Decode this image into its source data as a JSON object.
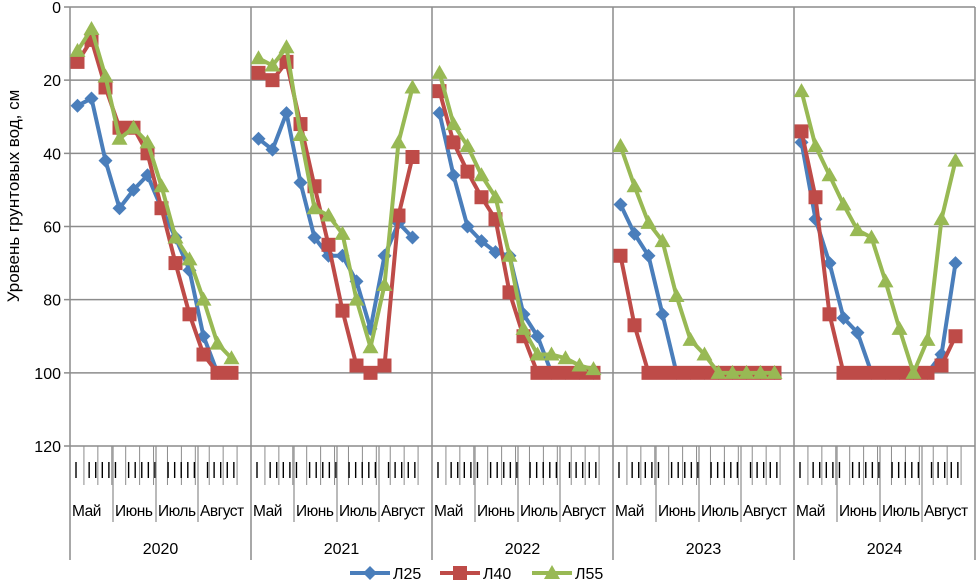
{
  "chart_data": {
    "type": "line",
    "title": "",
    "ylabel": "Уровень грунтовых вод, см",
    "xlabel": "",
    "ylim": [
      0,
      120
    ],
    "y_inverted": true,
    "yticks": [
      "0",
      "20",
      "40",
      "60",
      "80",
      "100",
      "120"
    ],
    "ytick_values": [
      0,
      20,
      40,
      60,
      80,
      100,
      120
    ],
    "grid": true,
    "legend_position": "bottom",
    "years": [
      "2020",
      "2021",
      "2022",
      "2023",
      "2024"
    ],
    "months": [
      "Май",
      "Июнь",
      "Июль",
      "Август"
    ],
    "points_per_year": 12,
    "series": [
      {
        "name": "Л25",
        "color": "#4a7ebb",
        "marker": "diamond",
        "values": {
          "2020": [
            27,
            25,
            42,
            55,
            50,
            46,
            55,
            63,
            72,
            90,
            100,
            100
          ],
          "2021": [
            36,
            39,
            29,
            48,
            63,
            68,
            68,
            75,
            88,
            68,
            59,
            63
          ],
          "2022": [
            29,
            46,
            60,
            64,
            67,
            68,
            84,
            90,
            100,
            100,
            100,
            100
          ],
          "2023": [
            54,
            62,
            68,
            84,
            100,
            100,
            100,
            100,
            100,
            100,
            100,
            100
          ],
          "2024": [
            37,
            58,
            70,
            85,
            89,
            100,
            100,
            100,
            100,
            100,
            95,
            70
          ]
        }
      },
      {
        "name": "Л40",
        "color": "#be4b48",
        "marker": "square",
        "values": {
          "2020": [
            15,
            9,
            22,
            33,
            33,
            40,
            55,
            70,
            84,
            95,
            100,
            100
          ],
          "2021": [
            18,
            20,
            15,
            32,
            49,
            65,
            83,
            98,
            100,
            98,
            57,
            41
          ],
          "2022": [
            23,
            37,
            45,
            52,
            58,
            78,
            90,
            100,
            100,
            100,
            100,
            100
          ],
          "2023": [
            68,
            87,
            100,
            100,
            100,
            100,
            100,
            100,
            100,
            100,
            100,
            100
          ],
          "2024": [
            34,
            52,
            84,
            100,
            100,
            100,
            100,
            100,
            100,
            100,
            98,
            90
          ]
        }
      },
      {
        "name": "Л55",
        "color": "#98b954",
        "marker": "triangle",
        "values": {
          "2020": [
            12,
            6,
            19,
            36,
            33,
            37,
            49,
            63,
            69,
            80,
            92,
            96
          ],
          "2021": [
            14,
            16,
            11,
            35,
            55,
            57,
            62,
            80,
            93,
            76,
            37,
            22
          ],
          "2022": [
            18,
            32,
            38,
            46,
            52,
            68,
            88,
            95,
            95,
            96,
            98,
            99
          ],
          "2023": [
            38,
            49,
            59,
            64,
            79,
            91,
            95,
            100,
            100,
            100,
            100,
            100
          ],
          "2024": [
            23,
            38,
            46,
            54,
            61,
            63,
            75,
            88,
            100,
            91,
            58,
            42
          ]
        }
      }
    ]
  }
}
